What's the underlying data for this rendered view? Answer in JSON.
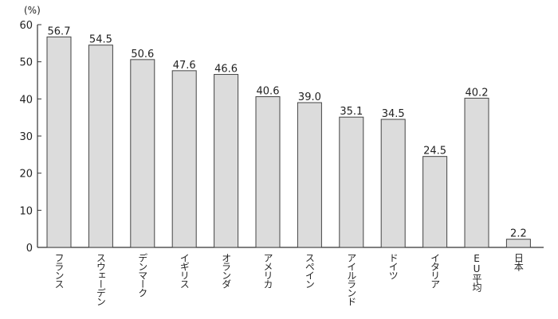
{
  "chart_data": {
    "type": "bar",
    "unit_label": "(%)",
    "categories": [
      "フランス",
      "スウェーデン",
      "デンマーク",
      "イギリス",
      "オランダ",
      "アメリカ",
      "スペイン",
      "アイルランド",
      "ドイツ",
      "イタリア",
      "EU平均",
      "日本"
    ],
    "values": [
      56.7,
      54.5,
      50.6,
      47.6,
      46.6,
      40.6,
      39.0,
      35.1,
      34.5,
      24.5,
      40.2,
      2.2
    ],
    "value_labels": [
      "56.7",
      "54.5",
      "50.6",
      "47.6",
      "46.6",
      "40.6",
      "39.0",
      "35.1",
      "34.5",
      "24.5",
      "40.2",
      "2.2"
    ],
    "ylim": [
      0,
      60
    ],
    "yticks": [
      "0",
      "10",
      "20",
      "30",
      "40",
      "50",
      "60"
    ],
    "grid": false,
    "bar_color": "#dcdcdc",
    "edge_color": "#444444"
  }
}
